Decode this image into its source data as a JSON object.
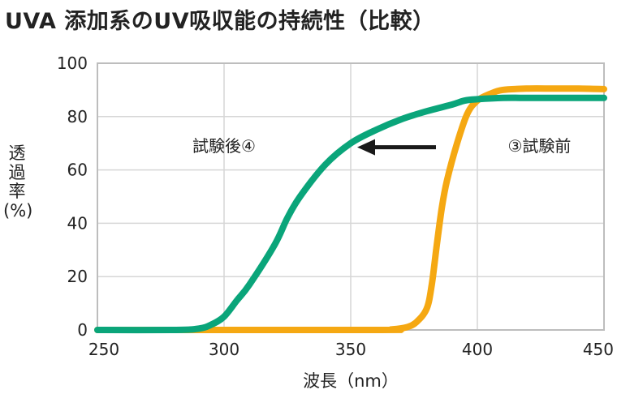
{
  "chart_data": {
    "type": "line",
    "title": "UVA 添加系のUV吸収能の持続性（比較）",
    "ylabel_chars": [
      "透",
      "過",
      "率",
      "(%)"
    ],
    "xlabel": "波長（nm）",
    "xlim": [
      250,
      450
    ],
    "ylim": [
      0,
      100
    ],
    "xticks": [
      250,
      300,
      350,
      400,
      450
    ],
    "yticks": [
      0,
      20,
      40,
      60,
      80,
      100
    ],
    "grid": true,
    "arrow_direction": "left",
    "series": [
      {
        "name": "試験後④",
        "color": "#0aa57a",
        "label_at": [
          300,
          69
        ],
        "x": [
          250,
          280,
          290,
          295,
          300,
          305,
          310,
          320,
          325,
          330,
          340,
          350,
          360,
          370,
          380,
          390,
          395,
          400,
          410,
          420,
          430,
          440,
          450
        ],
        "y": [
          0,
          0,
          0.5,
          2,
          5,
          11,
          17,
          32,
          42,
          50,
          62,
          70,
          75,
          79,
          82,
          84.5,
          86,
          86.5,
          87,
          87,
          87,
          87,
          87
        ]
      },
      {
        "name": "③試験前",
        "color": "#f5a812",
        "label_at": [
          412,
          69
        ],
        "x": [
          250,
          360,
          366,
          372,
          376,
          380,
          382,
          384,
          386,
          388,
          392,
          396,
          400,
          405,
          410,
          420,
          430,
          440,
          450
        ],
        "y": [
          0,
          0,
          0.2,
          1,
          3,
          8,
          17,
          32,
          46,
          56,
          70,
          81,
          86,
          88.5,
          90,
          90.5,
          90.5,
          90.5,
          90.3
        ]
      }
    ]
  }
}
